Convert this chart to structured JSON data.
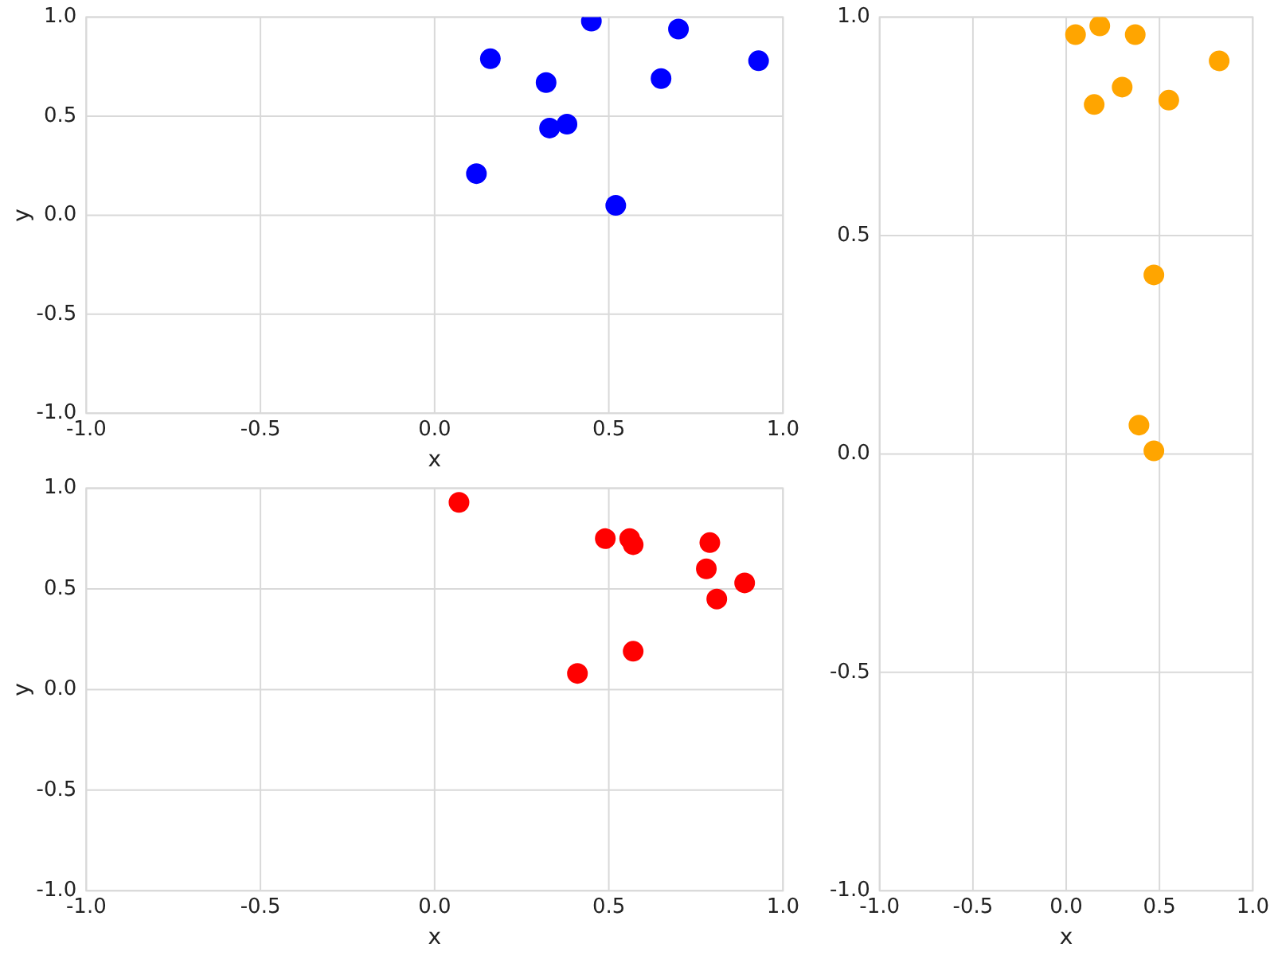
{
  "chart_data": [
    {
      "type": "scatter",
      "xlabel": "x",
      "ylabel": "y",
      "xlim": [
        -1,
        1
      ],
      "ylim": [
        -1,
        1
      ],
      "xticks": [
        {
          "value": -1,
          "label": "-1.0"
        },
        {
          "value": -0.5,
          "label": "-0.5"
        },
        {
          "value": 0,
          "label": "0.0"
        },
        {
          "value": 0.5,
          "label": "0.5"
        },
        {
          "value": 1,
          "label": "1.0"
        }
      ],
      "yticks": [
        {
          "value": -1,
          "label": "-1.0"
        },
        {
          "value": -0.5,
          "label": "-0.5"
        },
        {
          "value": 0,
          "label": "0.0"
        },
        {
          "value": 0.5,
          "label": "0.5"
        },
        {
          "value": 1,
          "label": "1.0"
        }
      ],
      "grid": true,
      "legend": false,
      "marker": "circle",
      "series": [
        {
          "color": "#0000ff",
          "x": [
            0.16,
            0.12,
            0.32,
            0.33,
            0.38,
            0.45,
            0.52,
            0.65,
            0.7,
            0.93
          ],
          "values": [
            0.79,
            0.21,
            0.67,
            0.44,
            0.46,
            0.98,
            0.05,
            0.69,
            0.94,
            0.78
          ]
        }
      ]
    },
    {
      "type": "scatter",
      "xlabel": "x",
      "ylabel": "y",
      "xlim": [
        -1,
        1
      ],
      "ylim": [
        -1,
        1
      ],
      "xticks": [
        {
          "value": -1,
          "label": "-1.0"
        },
        {
          "value": -0.5,
          "label": "-0.5"
        },
        {
          "value": 0,
          "label": "0.0"
        },
        {
          "value": 0.5,
          "label": "0.5"
        },
        {
          "value": 1,
          "label": "1.0"
        }
      ],
      "yticks": [
        {
          "value": -1,
          "label": "-1.0"
        },
        {
          "value": -0.5,
          "label": "-0.5"
        },
        {
          "value": 0,
          "label": "0.0"
        },
        {
          "value": 0.5,
          "label": "0.5"
        },
        {
          "value": 1,
          "label": "1.0"
        }
      ],
      "grid": true,
      "legend": false,
      "marker": "circle",
      "series": [
        {
          "color": "#ff0000",
          "x": [
            0.07,
            0.41,
            0.49,
            0.56,
            0.57,
            0.57,
            0.78,
            0.79,
            0.81,
            0.89
          ],
          "values": [
            0.93,
            0.08,
            0.75,
            0.75,
            0.72,
            0.19,
            0.6,
            0.73,
            0.45,
            0.53
          ]
        }
      ]
    },
    {
      "type": "scatter",
      "xlabel": "x",
      "xlim": [
        -1,
        1
      ],
      "ylim": [
        -1,
        1
      ],
      "xticks": [
        {
          "value": -1,
          "label": "-1.0"
        },
        {
          "value": -0.5,
          "label": "-0.5"
        },
        {
          "value": 0,
          "label": "0.0"
        },
        {
          "value": 0.5,
          "label": "0.5"
        },
        {
          "value": 1,
          "label": "1.0"
        }
      ],
      "yticks": [
        {
          "value": -1,
          "label": "-1.0"
        },
        {
          "value": -0.5,
          "label": "-0.5"
        },
        {
          "value": 0,
          "label": "0.0"
        },
        {
          "value": 0.5,
          "label": "0.5"
        },
        {
          "value": 1,
          "label": "1.0"
        }
      ],
      "grid": true,
      "legend": false,
      "marker": "circle",
      "series": [
        {
          "color": "#ffa500",
          "x": [
            0.05,
            0.18,
            0.37,
            0.15,
            0.3,
            0.55,
            0.82,
            0.47,
            0.39,
            0.47
          ],
          "values": [
            0.96,
            0.98,
            0.96,
            0.8,
            0.84,
            0.81,
            0.9,
            0.41,
            0.066,
            0.007
          ]
        }
      ]
    }
  ]
}
